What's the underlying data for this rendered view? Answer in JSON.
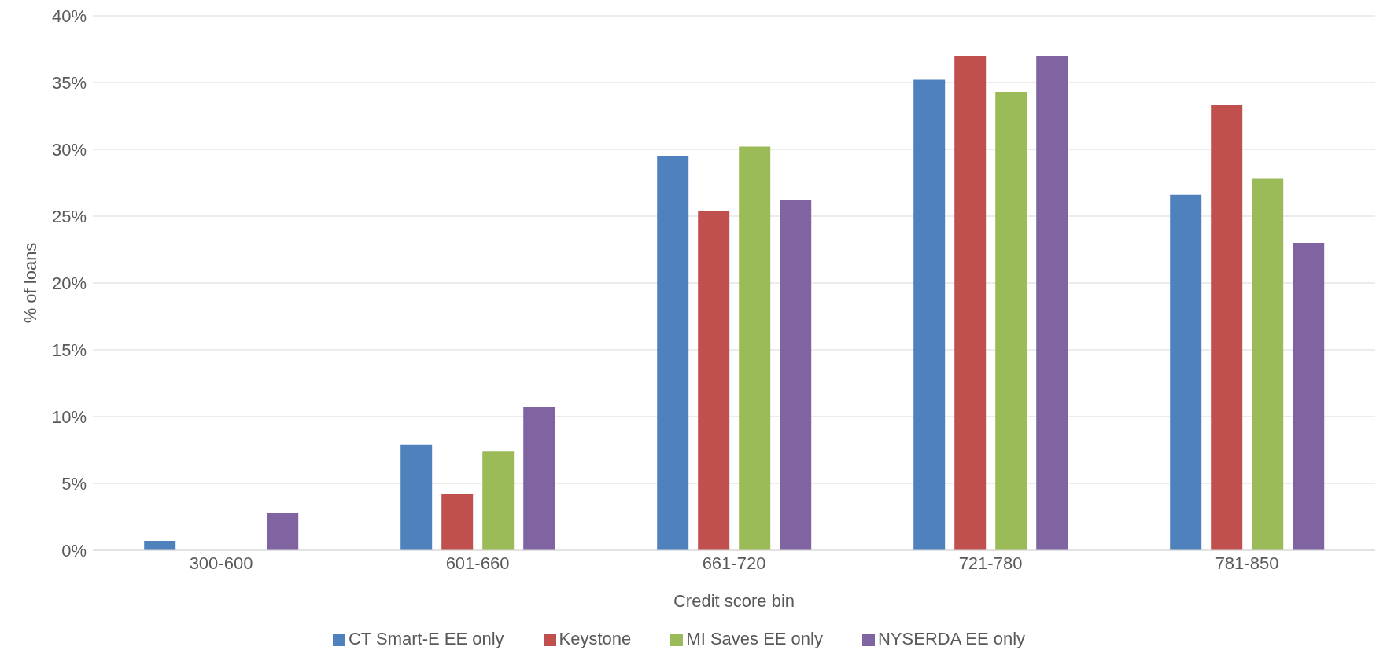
{
  "chart_data": {
    "type": "bar",
    "xlabel": "Credit score bin",
    "ylabel": "% of loans",
    "categories": [
      "300-600",
      "601-660",
      "661-720",
      "721-780",
      "781-850"
    ],
    "series": [
      {
        "name": "CT Smart-E EE only",
        "color": "#4f81bd",
        "values": [
          0.7,
          7.9,
          29.5,
          35.2,
          26.6
        ]
      },
      {
        "name": "Keystone",
        "color": "#c0504d",
        "values": [
          0,
          4.2,
          25.4,
          37.0,
          33.3
        ]
      },
      {
        "name": "MI Saves EE only",
        "color": "#9bbb59",
        "values": [
          0,
          7.4,
          30.2,
          34.3,
          27.8
        ]
      },
      {
        "name": "NYSERDA EE only",
        "color": "#8064a2",
        "values": [
          2.8,
          10.7,
          26.2,
          37.0,
          23.0
        ]
      }
    ],
    "ylim": [
      0,
      40
    ],
    "yticks": [
      {
        "value": 0,
        "label": "0%"
      },
      {
        "value": 5,
        "label": "5%"
      },
      {
        "value": 10,
        "label": "10%"
      },
      {
        "value": 15,
        "label": "15%"
      },
      {
        "value": 20,
        "label": "20%"
      },
      {
        "value": 25,
        "label": "25%"
      },
      {
        "value": 30,
        "label": "30%"
      },
      {
        "value": 35,
        "label": "35%"
      },
      {
        "value": 40,
        "label": "40%"
      }
    ],
    "grid": "y",
    "legend": "bottom"
  }
}
